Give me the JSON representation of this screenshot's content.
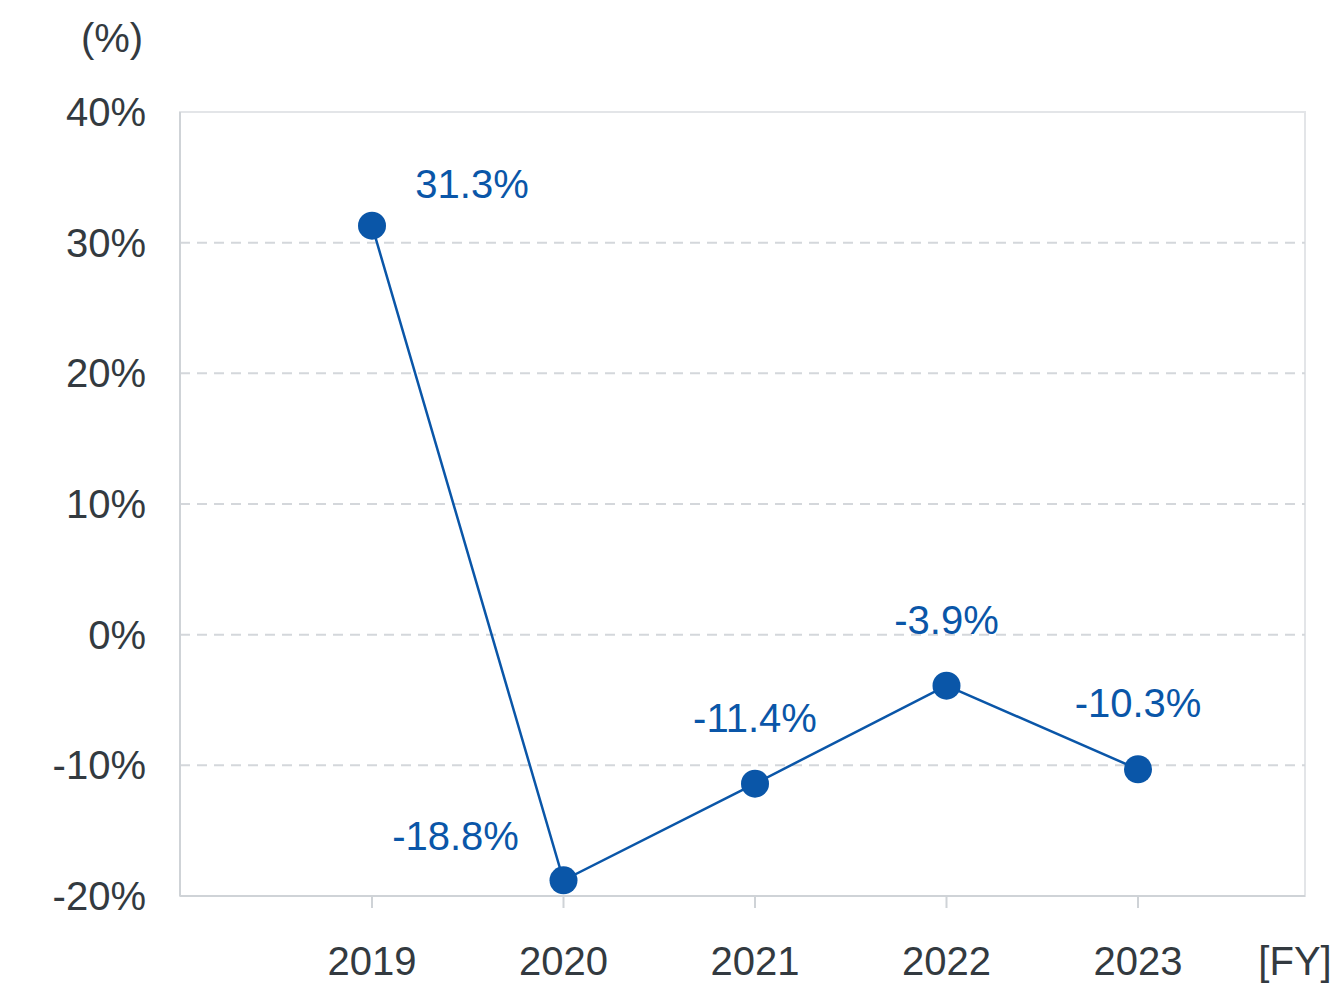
{
  "chart_data": {
    "type": "line",
    "y_label": "(%)",
    "x_label": "[FY]",
    "categories": [
      "2019",
      "2020",
      "2021",
      "2022",
      "2023"
    ],
    "series": [
      {
        "color": "#0a56a8",
        "marker": "circle",
        "values": [
          31.3,
          -18.8,
          -11.4,
          -3.9,
          -10.3
        ],
        "value_labels": [
          "31.3%",
          "-18.8%",
          "-11.4%",
          "-3.9%",
          "-10.3%"
        ]
      }
    ],
    "ylim": [
      -20,
      40
    ],
    "yticks": [
      {
        "value": -20,
        "label": "-20%"
      },
      {
        "value": -10,
        "label": "-10%"
      },
      {
        "value": 0,
        "label": "0%"
      },
      {
        "value": 10,
        "label": "10%"
      },
      {
        "value": 20,
        "label": "20%"
      },
      {
        "value": 30,
        "label": "30%"
      },
      {
        "value": 40,
        "label": "40%"
      }
    ],
    "grid": true,
    "data_labels": true
  }
}
